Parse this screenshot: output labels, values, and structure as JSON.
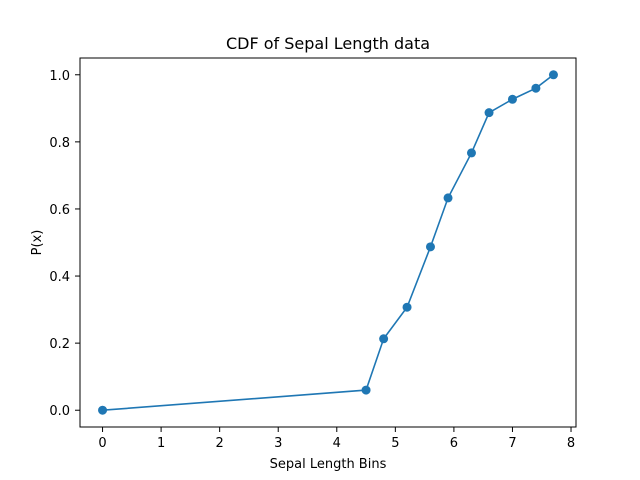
{
  "chart_data": {
    "type": "line",
    "title": "CDF of Sepal Length data",
    "xlabel": "Sepal Length Bins",
    "ylabel": "P(x)",
    "xlim": [
      -0.385,
      8.085
    ],
    "ylim": [
      -0.05,
      1.05
    ],
    "xticks": [
      0,
      1,
      2,
      3,
      4,
      5,
      6,
      7,
      8
    ],
    "xtick_labels": [
      "0",
      "1",
      "2",
      "3",
      "4",
      "5",
      "6",
      "7",
      "8"
    ],
    "yticks": [
      0.0,
      0.2,
      0.4,
      0.6,
      0.8,
      1.0
    ],
    "ytick_labels": [
      "0.0",
      "0.2",
      "0.4",
      "0.6",
      "0.8",
      "1.0"
    ],
    "grid": false,
    "series": [
      {
        "color": "#1f77b4",
        "marker": "circle",
        "x": [
          0,
          4.5,
          4.8,
          5.2,
          5.6,
          5.9,
          6.3,
          6.6,
          7.0,
          7.4,
          7.7
        ],
        "y": [
          0.0,
          0.06,
          0.213,
          0.307,
          0.487,
          0.633,
          0.767,
          0.887,
          0.927,
          0.96,
          1.0
        ]
      }
    ]
  }
}
